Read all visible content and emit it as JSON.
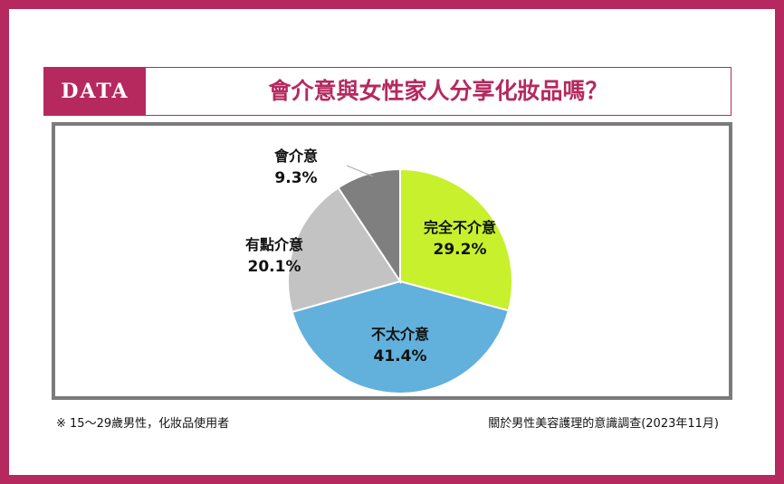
{
  "badge": "DATA",
  "chart_data": {
    "type": "pie",
    "title": "會介意與女性家人分享化妝品嗎？",
    "slices": [
      {
        "label": "完全不介意",
        "value": 29.2,
        "value_label": "29.2%",
        "color": "#c8f02c"
      },
      {
        "label": "不太介意",
        "value": 41.4,
        "value_label": "41.4%",
        "color": "#62b0dc"
      },
      {
        "label": "有點介意",
        "value": 20.1,
        "value_label": "20.1%",
        "color": "#c3c3c3"
      },
      {
        "label": "會介意",
        "value": 9.3,
        "value_label": "9.3%",
        "color": "#7f7f7f"
      }
    ],
    "start": "top",
    "direction": "clockwise"
  },
  "footnote": "※ 15～29歲男性，化妝品使用者",
  "source": "關於男性美容護理的意識調查(2023年11月)"
}
